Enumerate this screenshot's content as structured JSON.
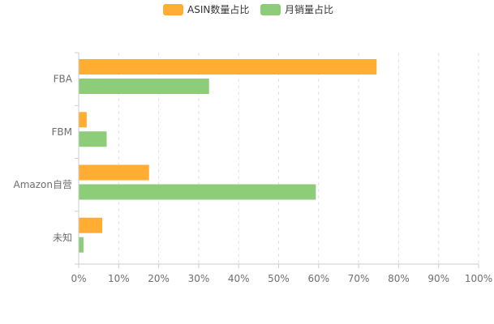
{
  "chart_data": {
    "type": "bar",
    "orientation": "horizontal",
    "categories": [
      "FBA",
      "FBM",
      "Amazon自营",
      "未知"
    ],
    "series": [
      {
        "name": "ASIN数量占比",
        "color": "#ffad33",
        "values": [
          74.5,
          2.0,
          17.6,
          5.9
        ]
      },
      {
        "name": "月销量占比",
        "color": "#8dcc78",
        "values": [
          32.6,
          7.0,
          59.3,
          1.2
        ]
      }
    ],
    "xlim": [
      0,
      100
    ],
    "x_ticks": [
      "0%",
      "10%",
      "20%",
      "30%",
      "40%",
      "50%",
      "60%",
      "70%",
      "80%",
      "90%",
      "100%"
    ],
    "x_tick_values": [
      0,
      10,
      20,
      30,
      40,
      50,
      60,
      70,
      80,
      90,
      100
    ],
    "grid": "vertical-dashed",
    "legend": "top-center",
    "title": "",
    "xlabel": "",
    "ylabel": ""
  }
}
